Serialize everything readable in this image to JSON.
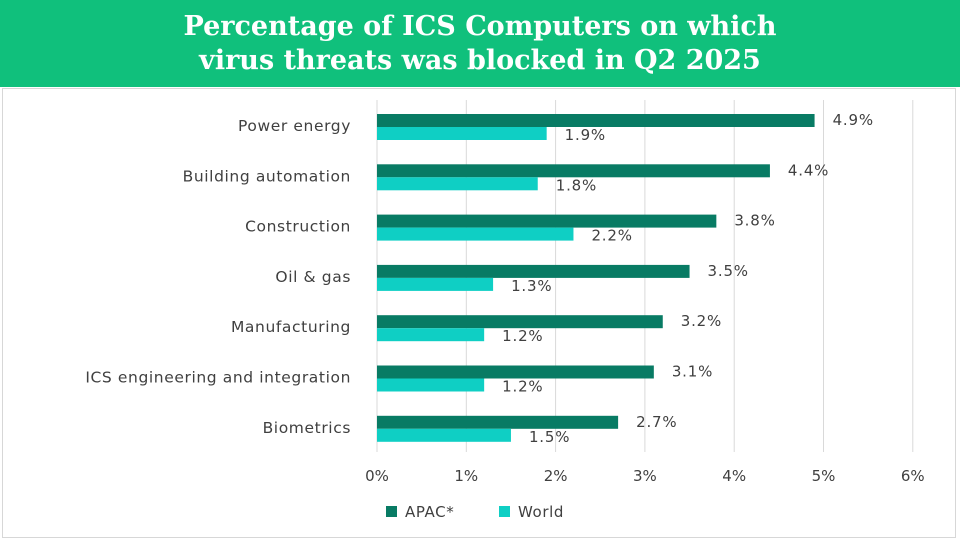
{
  "header": {
    "title_line1": "Percentage of ICS Computers on which",
    "title_line2": "virus threats was blocked in Q2 2025"
  },
  "colors": {
    "header_bg": "#10c07c",
    "apac": "#087b64",
    "world": "#0fcfc4",
    "grid": "#d9d9d9",
    "text": "#404040"
  },
  "chart_data": {
    "type": "bar",
    "orientation": "horizontal",
    "title": "Percentage of ICS Computers on which virus threats was blocked in Q2 2025",
    "categories": [
      "Power energy",
      "Building automation",
      "Construction",
      "Oil & gas",
      "Manufacturing",
      "ICS engineering and integration",
      "Biometrics"
    ],
    "series": [
      {
        "name": "APAC*",
        "values": [
          4.9,
          4.4,
          3.8,
          3.5,
          3.2,
          3.1,
          2.7
        ],
        "labels": [
          "4.9%",
          "4.4%",
          "3.8%",
          "3.5%",
          "3.2%",
          "3.1%",
          "2.7%"
        ]
      },
      {
        "name": "World",
        "values": [
          1.9,
          1.8,
          2.2,
          1.3,
          1.2,
          1.2,
          1.5
        ],
        "labels": [
          "1.9%",
          "1.8%",
          "2.2%",
          "1.3%",
          "1.2%",
          "1.2%",
          "1.5%"
        ]
      }
    ],
    "xlim": [
      0,
      6
    ],
    "xticks": [
      0,
      1,
      2,
      3,
      4,
      5,
      6
    ],
    "xtick_labels": [
      "0%",
      "1%",
      "2%",
      "3%",
      "4%",
      "5%",
      "6%"
    ],
    "grid": "vertical",
    "legend": "bottom-left"
  }
}
